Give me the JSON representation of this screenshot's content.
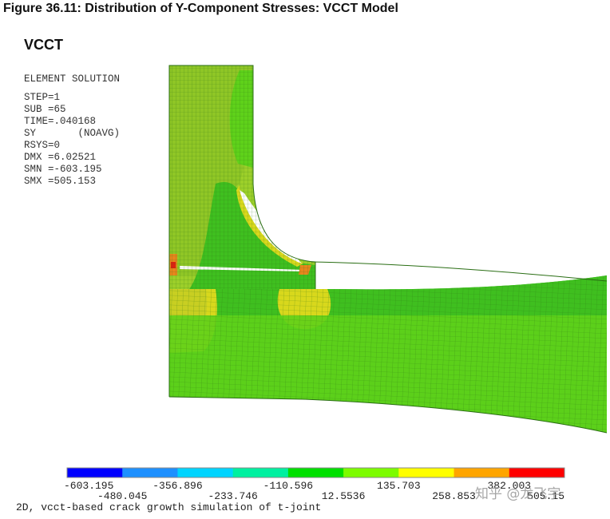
{
  "figure_title": "Figure 36.11: Distribution of Y-Component Stresses: VCCT Model",
  "model_title": "VCCT",
  "info": {
    "line1": "ELEMENT SOLUTION",
    "line2": "STEP=1",
    "line3": "SUB =65",
    "line4": "TIME=.040168",
    "line5": "SY       (NOAVG)",
    "line6": "RSYS=0",
    "line7": "DMX =6.02521",
    "line8": "SMN =-603.195",
    "line9": "SMX =505.153"
  },
  "caption": "2D, vcct-based crack growth simulation of t-joint",
  "watermark": "知乎 @龙飞宇",
  "colors": {
    "band_dark_green": "#3fbf1f",
    "band_green": "#5fd11a",
    "band_yellow_green": "#9ccf2a",
    "band_yellow": "#d8d81c",
    "band_orange": "#e8861c",
    "band_red": "#e02010",
    "mesh_line": "#2a6e14"
  },
  "chart_data": {
    "type": "heatmap",
    "title": "SY (NOAVG)",
    "legend_colors": [
      "#0000ff",
      "#1e90ff",
      "#00d4ff",
      "#00f0a0",
      "#00e000",
      "#7cfc00",
      "#ffff00",
      "#ffa500",
      "#ff0000"
    ],
    "legend_ticks": [
      "-603.195",
      "-480.045",
      "-356.896",
      "-233.746",
      "-110.596",
      "12.5536",
      "135.703",
      "258.853",
      "382.003",
      "505.15"
    ],
    "legend_ticks_visible": [
      "-603.195",
      "-480.045",
      "-356.896",
      "-233.746",
      "-110.596",
      "12.5536",
      "135.703",
      "258.853",
      "382.003",
      "505.15"
    ],
    "min": -603.195,
    "max": 505.153
  }
}
